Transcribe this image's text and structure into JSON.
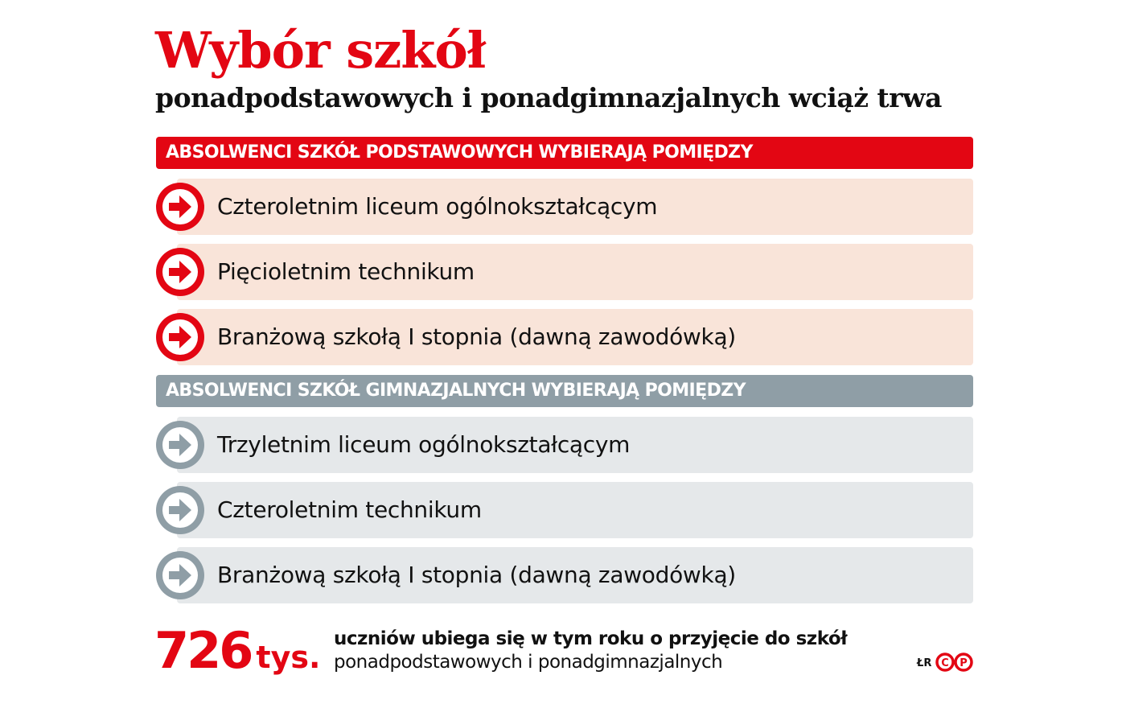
{
  "title": "Wybór szkół",
  "subtitle": "ponadpodstawowych i ponadgimnazjalnych wciąż trwa",
  "colors": {
    "accent": "#e30613",
    "gray": "#8f9ea6",
    "pink_row": "#f9e4d9",
    "gray_row": "#e5e8ea"
  },
  "sections": [
    {
      "header": "ABSOLWENCI SZKÓŁ PODSTAWOWYCH WYBIERAJĄ POMIĘDZY",
      "items": [
        "Czteroletnim liceum ogólnokształcącym",
        "Pięcioletnim technikum",
        "Branżową szkołą I stopnia (dawną zawodówką)"
      ]
    },
    {
      "header": "ABSOLWENCI SZKÓŁ GIMNAZJALNYCH WYBIERAJĄ POMIĘDZY",
      "items": [
        "Trzyletnim liceum ogólnokształcącym",
        "Czteroletnim technikum",
        "Branżową szkołą I stopnia (dawną zawodówką)"
      ]
    }
  ],
  "footer": {
    "number": "726",
    "unit": "tys.",
    "line1": "uczniów ubiega się w tym roku o przyjęcie do szkół",
    "line2": "ponadpodstawowych i ponadgimnazjalnych",
    "credit": "ŁR",
    "logo": "CP"
  }
}
